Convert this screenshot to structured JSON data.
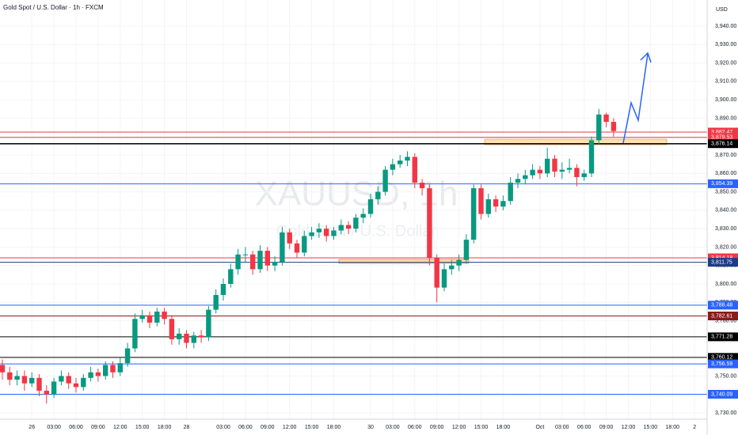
{
  "chart_data": {
    "type": "candlestick",
    "title": "Gold Spot / U.S. Dollar · 1h · FXCM",
    "currency": "USD",
    "watermark": "XAUUSD, 1h",
    "watermark_sub": "Gold Spot / U.S. Dollar",
    "up_color": "#089981",
    "down_color": "#f23645",
    "categories": [
      null,
      null,
      null,
      null,
      "26",
      null,
      null,
      "03:00",
      null,
      null,
      "06:00",
      null,
      null,
      "09:00",
      null,
      null,
      "12:00",
      null,
      null,
      "15:00",
      null,
      null,
      "18:00",
      null,
      null,
      "28",
      null,
      null,
      null,
      null,
      "03:00",
      null,
      null,
      "06:00",
      null,
      null,
      "09:00",
      null,
      null,
      "12:00",
      null,
      null,
      "15:00",
      null,
      null,
      "18:00",
      null,
      null,
      null,
      null,
      "30",
      null,
      null,
      "03:00",
      null,
      null,
      "06:00",
      null,
      null,
      "09:00",
      null,
      null,
      "12:00",
      null,
      null,
      "15:00",
      null,
      null,
      "18:00",
      null,
      null,
      null,
      null,
      "Oct",
      null,
      null,
      "03:00",
      null,
      null,
      "06:00",
      null,
      null,
      "09:00",
      null,
      null,
      "12:00",
      null,
      null,
      "15:00",
      null,
      null,
      "18:00",
      null,
      null,
      "2"
    ],
    "open": [
      3756,
      3752,
      3748,
      3750,
      3746,
      3749,
      3742,
      3740,
      3747,
      3750,
      3746,
      3744,
      3749,
      3752,
      3750,
      3756,
      3752,
      3757,
      3765,
      3781,
      3783,
      3779,
      3785,
      3781,
      3770,
      3773,
      3768,
      3772,
      3771,
      3786,
      3794,
      3800,
      3808,
      3816,
      3816,
      3808,
      3818,
      3810,
      3812,
      3828,
      3822,
      3817,
      3826,
      3828,
      3830,
      3826,
      3829,
      3832,
      3830,
      3836,
      3838,
      3846,
      3850,
      3862,
      3865,
      3867,
      3869,
      3855,
      3852,
      3814,
      3798,
      3808,
      3810,
      3813,
      3824,
      3852,
      3838,
      3846,
      3842,
      3845,
      3855,
      3857,
      3859,
      3862,
      3860,
      3868,
      3861,
      3862,
      3863,
      3858,
      3860,
      3878,
      3892,
      3888,
      null,
      null,
      null,
      null,
      null,
      null,
      null,
      null,
      null,
      null,
      null
    ],
    "high": [
      3759,
      3755,
      3753,
      3753,
      3752,
      3751,
      3745,
      3749,
      3753,
      3752,
      3749,
      3751,
      3755,
      3754,
      3758,
      3758,
      3760,
      3768,
      3784,
      3786,
      3785,
      3787,
      3787,
      3783,
      3776,
      3775,
      3774,
      3775,
      3788,
      3797,
      3803,
      3811,
      3819,
      3820,
      3818,
      3821,
      3820,
      3815,
      3831,
      3830,
      3824,
      3829,
      3831,
      3833,
      3832,
      3831,
      3835,
      3834,
      3838,
      3841,
      3849,
      3853,
      3864,
      3868,
      3870,
      3872,
      3871,
      3857,
      3854,
      3816,
      3811,
      3813,
      3816,
      3827,
      3854,
      3854,
      3849,
      3848,
      3848,
      3858,
      3860,
      3862,
      3865,
      3864,
      3874,
      3870,
      3866,
      3868,
      3865,
      3862,
      3880,
      3895,
      3893,
      3890,
      null,
      null,
      null,
      null,
      null,
      null,
      null,
      null,
      null,
      null,
      null
    ],
    "low": [
      3748,
      3745,
      3745,
      3742,
      3744,
      3739,
      3735,
      3738,
      3745,
      3743,
      3741,
      3742,
      3747,
      3747,
      3748,
      3749,
      3750,
      3755,
      3763,
      3779,
      3776,
      3777,
      3778,
      3767,
      3767,
      3765,
      3765,
      3768,
      3769,
      3784,
      3791,
      3798,
      3805,
      3812,
      3805,
      3806,
      3807,
      3807,
      3810,
      3819,
      3814,
      3815,
      3824,
      3825,
      3823,
      3824,
      3827,
      3827,
      3828,
      3833,
      3836,
      3843,
      3848,
      3859,
      3863,
      3864,
      3852,
      3848,
      3810,
      3790,
      3796,
      3805,
      3807,
      3811,
      3822,
      3835,
      3836,
      3839,
      3840,
      3843,
      3852,
      3854,
      3857,
      3857,
      3858,
      3858,
      3857,
      3860,
      3853,
      3856,
      3858,
      3876,
      3885,
      3880,
      null,
      null,
      null,
      null,
      null,
      null,
      null,
      null,
      null,
      null,
      null
    ],
    "close": [
      3752,
      3748,
      3750,
      3746,
      3749,
      3742,
      3740,
      3747,
      3750,
      3746,
      3744,
      3749,
      3752,
      3750,
      3756,
      3752,
      3757,
      3765,
      3781,
      3783,
      3779,
      3785,
      3781,
      3770,
      3773,
      3768,
      3772,
      3771,
      3786,
      3794,
      3800,
      3808,
      3816,
      3816,
      3808,
      3818,
      3810,
      3812,
      3828,
      3822,
      3817,
      3826,
      3828,
      3830,
      3826,
      3829,
      3832,
      3830,
      3836,
      3838,
      3846,
      3850,
      3862,
      3865,
      3867,
      3869,
      3855,
      3852,
      3814,
      3798,
      3808,
      3810,
      3813,
      3824,
      3852,
      3838,
      3846,
      3842,
      3845,
      3855,
      3857,
      3859,
      3862,
      3860,
      3868,
      3861,
      3862,
      3863,
      3858,
      3860,
      3878,
      3892,
      3888,
      3883,
      null,
      null,
      null,
      null,
      null,
      null,
      null,
      null,
      null,
      null,
      null
    ],
    "ylim": [
      3730,
      3940
    ],
    "yticks": [
      {
        "value": 3940,
        "label": "3,940.00"
      },
      {
        "value": 3930,
        "label": "3,930.00"
      },
      {
        "value": 3920,
        "label": "3,920.00"
      },
      {
        "value": 3910,
        "label": "3,910.00"
      },
      {
        "value": 3900,
        "label": "3,900.00"
      },
      {
        "value": 3890,
        "label": "3,890.00"
      },
      {
        "value": 3880,
        "label": "3,880.00"
      },
      {
        "value": 3870,
        "label": "3,870.00"
      },
      {
        "value": 3860,
        "label": "3,860.00"
      },
      {
        "value": 3850,
        "label": "3,850.00"
      },
      {
        "value": 3840,
        "label": "3,840.00"
      },
      {
        "value": 3830,
        "label": "3,830.00"
      },
      {
        "value": 3820,
        "label": "3,820.00"
      },
      {
        "value": 3810,
        "label": "3,810.00"
      },
      {
        "value": 3800,
        "label": "3,800.00"
      },
      {
        "value": 3790,
        "label": "3,790.00"
      },
      {
        "value": 3780,
        "label": "3,780.00"
      },
      {
        "value": 3770,
        "label": "3,770.00"
      },
      {
        "value": 3760,
        "label": "3,760.00"
      },
      {
        "value": 3750,
        "label": "3,750.00"
      },
      {
        "value": 3740,
        "label": "3,740.00"
      },
      {
        "value": 3730,
        "label": "3,730.00"
      }
    ],
    "levels": [
      {
        "value": 3882.47,
        "label": "3,882.47",
        "color": "#f23645"
      },
      {
        "value": 3879.53,
        "label": "3,879.53",
        "color": "#f23645"
      },
      {
        "value": 3876.14,
        "label": "3,876.14",
        "color": "#000000"
      },
      {
        "value": 3854.39,
        "label": "3,854.39",
        "color": "#2962ff"
      },
      {
        "value": 3814.18,
        "label": "3,814.18",
        "color": "#f23645"
      },
      {
        "value": 3811.75,
        "label": "3,811.75",
        "color": "#1e3a8a"
      },
      {
        "value": 3788.48,
        "label": "3,788.48",
        "color": "#2962ff"
      },
      {
        "value": 3782.61,
        "label": "3,782.61",
        "color": "#8b1a1a"
      },
      {
        "value": 3771.28,
        "label": "3,771.28",
        "color": "#000000"
      },
      {
        "value": 3760.12,
        "label": "3,760.12",
        "color": "#000000"
      },
      {
        "value": 3756.59,
        "label": "3,756.59",
        "color": "#2962ff"
      },
      {
        "value": 3740.09,
        "label": "3,740.09",
        "color": "#2962ff"
      }
    ]
  }
}
